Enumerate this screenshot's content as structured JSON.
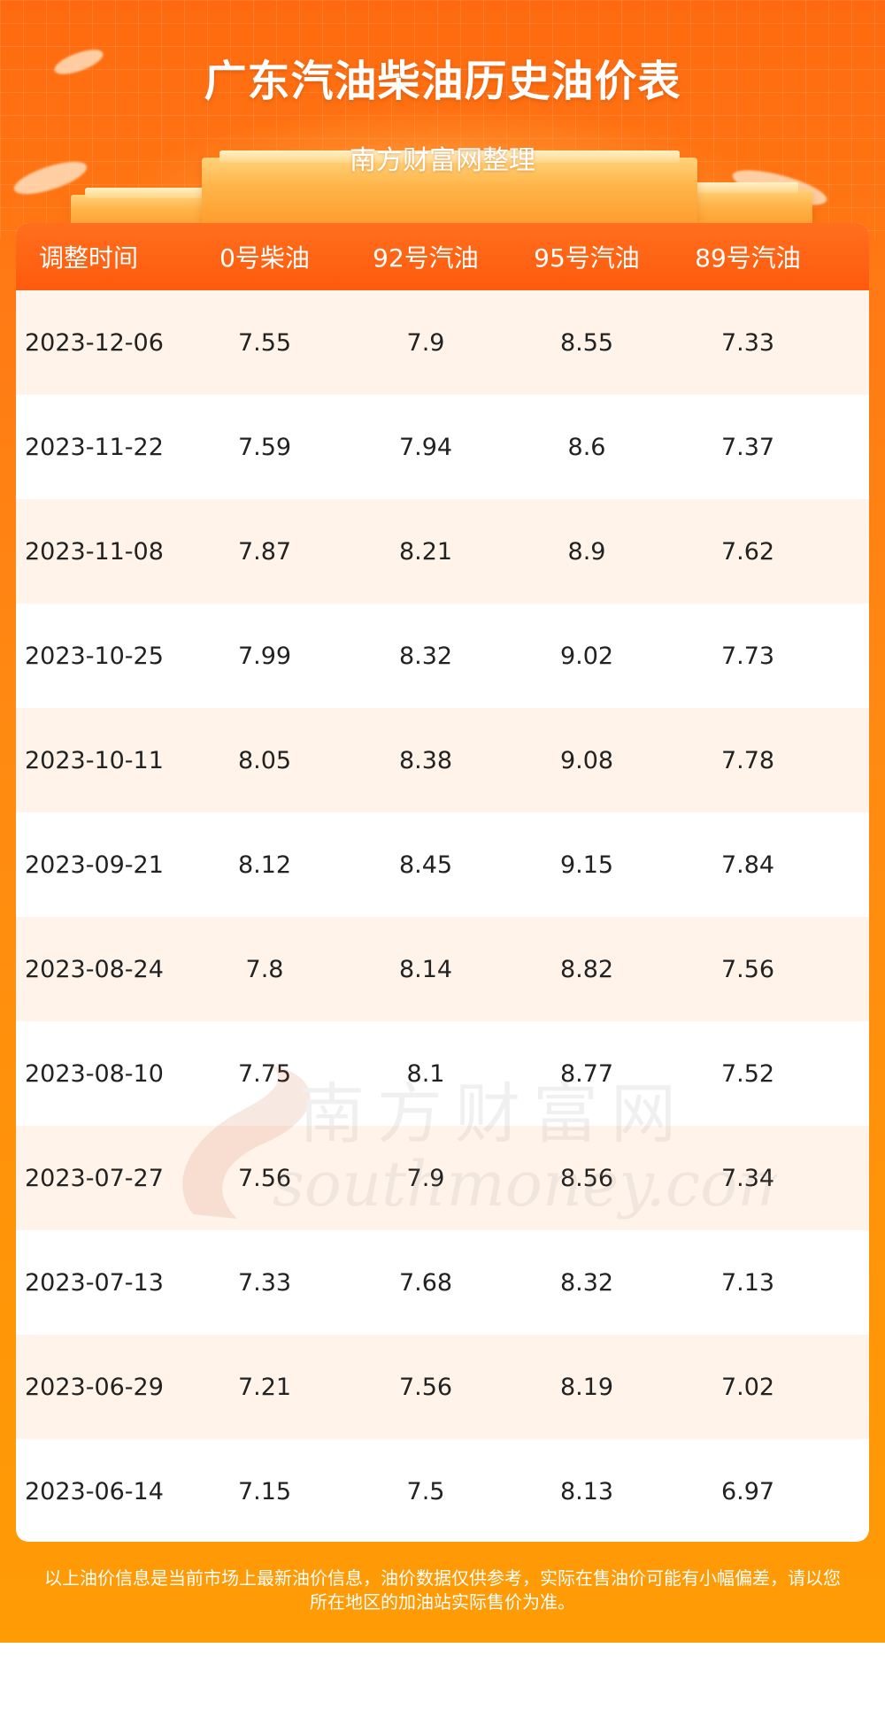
{
  "header": {
    "title": "广东汽油柴油历史油价表",
    "subtitle": "南方财富网整理"
  },
  "table": {
    "columns": [
      "调整时间",
      "0号柴油",
      "92号汽油",
      "95号汽油",
      "89号汽油"
    ],
    "rows": [
      [
        "2023-12-06",
        "7.55",
        "7.9",
        "8.55",
        "7.33"
      ],
      [
        "2023-11-22",
        "7.59",
        "7.94",
        "8.6",
        "7.37"
      ],
      [
        "2023-11-08",
        "7.87",
        "8.21",
        "8.9",
        "7.62"
      ],
      [
        "2023-10-25",
        "7.99",
        "8.32",
        "9.02",
        "7.73"
      ],
      [
        "2023-10-11",
        "8.05",
        "8.38",
        "9.08",
        "7.78"
      ],
      [
        "2023-09-21",
        "8.12",
        "8.45",
        "9.15",
        "7.84"
      ],
      [
        "2023-08-24",
        "7.8",
        "8.14",
        "8.82",
        "7.56"
      ],
      [
        "2023-08-10",
        "7.75",
        "8.1",
        "8.77",
        "7.52"
      ],
      [
        "2023-07-27",
        "7.56",
        "7.9",
        "8.56",
        "7.34"
      ],
      [
        "2023-07-13",
        "7.33",
        "7.68",
        "8.32",
        "7.13"
      ],
      [
        "2023-06-29",
        "7.21",
        "7.56",
        "8.19",
        "7.02"
      ],
      [
        "2023-06-14",
        "7.15",
        "7.5",
        "8.13",
        "6.97"
      ]
    ]
  },
  "watermark": {
    "cn": "南方财富网",
    "en": "southmoney.com"
  },
  "footer": {
    "line1": "以上油价信息是当前市场上最新油价信息，油价数据仅供参考，实际在售油价可能有小幅偏差，请以您",
    "line2": "所在地区的加油站实际售价为准。"
  },
  "colors": {
    "header_orange": "#ff5a0e",
    "alt_row": "#fff3ea",
    "background_top": "#ff6a10",
    "background_bottom": "#ff9c05"
  }
}
